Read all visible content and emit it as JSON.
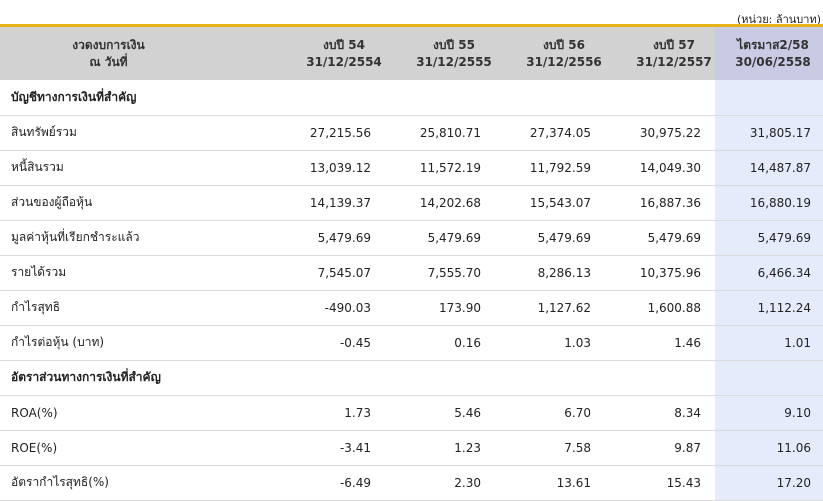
{
  "unit_note": "(หน่วย: ล้านบาท)",
  "header": {
    "label_line1": "งวดงบการเงิน",
    "label_line2": "ณ วันที่",
    "columns": [
      {
        "line1": "งบปี 54",
        "line2": "31/12/2554"
      },
      {
        "line1": "งบปี 55",
        "line2": "31/12/2555"
      },
      {
        "line1": "งบปี 56",
        "line2": "31/12/2556"
      },
      {
        "line1": "งบปี 57",
        "line2": "31/12/2557"
      },
      {
        "line1": "ไตรมาส2/58",
        "line2": "30/06/2558"
      }
    ]
  },
  "sections": [
    {
      "title": "บัญชีทางการเงินที่สำคัญ",
      "rows": [
        {
          "label": "สินทรัพย์รวม",
          "values": [
            "27,215.56",
            "25,810.71",
            "27,374.05",
            "30,975.22",
            "31,805.17"
          ]
        },
        {
          "label": "หนี้สินรวม",
          "values": [
            "13,039.12",
            "11,572.19",
            "11,792.59",
            "14,049.30",
            "14,487.87"
          ]
        },
        {
          "label": "ส่วนของผู้ถือหุ้น",
          "values": [
            "14,139.37",
            "14,202.68",
            "15,543.07",
            "16,887.36",
            "16,880.19"
          ]
        },
        {
          "label": "มูลค่าหุ้นที่เรียกชำระแล้ว",
          "values": [
            "5,479.69",
            "5,479.69",
            "5,479.69",
            "5,479.69",
            "5,479.69"
          ]
        },
        {
          "label": "รายได้รวม",
          "values": [
            "7,545.07",
            "7,555.70",
            "8,286.13",
            "10,375.96",
            "6,466.34"
          ]
        },
        {
          "label": "กำไรสุทธิ",
          "values": [
            "-490.03",
            "173.90",
            "1,127.62",
            "1,600.88",
            "1,112.24"
          ]
        },
        {
          "label": "กำไรต่อหุ้น (บาท)",
          "values": [
            "-0.45",
            "0.16",
            "1.03",
            "1.46",
            "1.01"
          ]
        }
      ]
    },
    {
      "title": "อัตราส่วนทางการเงินที่สำคัญ",
      "rows": [
        {
          "label": "ROA(%)",
          "values": [
            "1.73",
            "5.46",
            "6.70",
            "8.34",
            "9.10"
          ]
        },
        {
          "label": "ROE(%)",
          "values": [
            "-3.41",
            "1.23",
            "7.58",
            "9.87",
            "11.06"
          ]
        },
        {
          "label": "อัตรากำไรสุทธิ(%)",
          "values": [
            "-6.49",
            "2.30",
            "13.61",
            "15.43",
            "17.20"
          ]
        }
      ]
    }
  ]
}
